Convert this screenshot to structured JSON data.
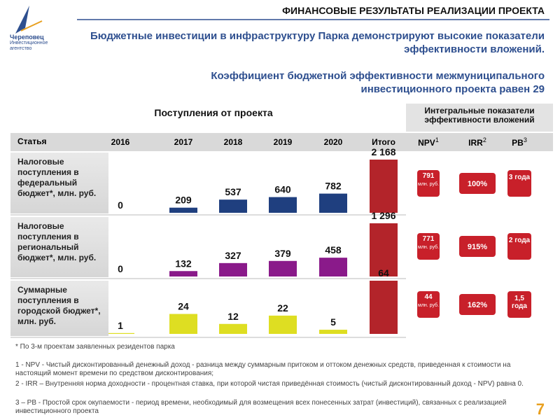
{
  "logo": {
    "name": "Череповец",
    "subtitle": "Инвестиционное агентство"
  },
  "header": {
    "title": "ФИНАНСОВЫЕ РЕЗУЛЬТАТЫ РЕАЛИЗАЦИИ ПРОЕКТА",
    "subtitle": "Бюджетные инвестиции в инфраструктуру Парка демонстрируют высокие показатели эффективности вложений.",
    "coefficient": "Коэффициент бюджетной эффективности межмуниципального инвестиционного проекта равен 29"
  },
  "table": {
    "section_title": "Поступления от проекта",
    "indicators_title": "Интегральные показатели эффективности вложений",
    "columns": [
      "Статья",
      "2016",
      "2017",
      "2018",
      "2019",
      "2020",
      "Итого"
    ],
    "indicator_columns": [
      {
        "name": "NPV",
        "note": "1"
      },
      {
        "name": "IRR",
        "note": "2"
      },
      {
        "name": "PB",
        "note": "3"
      }
    ],
    "total_color": "#b3242a",
    "indicator_color": "#c8202a",
    "rows": [
      {
        "label": "Налоговые поступления в федеральный бюджет*, млн. руб.",
        "color": "#1f3f7f",
        "values": [
          0,
          209,
          537,
          640,
          782,
          2168
        ],
        "value_labels": [
          "0",
          "209",
          "537",
          "640",
          "782",
          "2 168"
        ],
        "npv": "791",
        "npv_unit": "млн. руб.",
        "irr": "100%",
        "pb": "3 года"
      },
      {
        "label": "Налоговые поступления в региональный бюджет*, млн. руб.",
        "color": "#8a1a8a",
        "values": [
          0,
          132,
          327,
          379,
          458,
          1296
        ],
        "value_labels": [
          "0",
          "132",
          "327",
          "379",
          "458",
          "1 296"
        ],
        "npv": "771",
        "npv_unit": "млн. руб.",
        "irr": "915%",
        "pb": "2 года"
      },
      {
        "label": "Суммарные поступления в городской бюджет*, млн. руб.",
        "color": "#dede22",
        "values": [
          1,
          24,
          12,
          22,
          5,
          64
        ],
        "value_labels": [
          "1",
          "24",
          "12",
          "22",
          "5",
          "64"
        ],
        "npv": "44",
        "npv_unit": "млн. руб.",
        "irr": "162%",
        "pb": "1,5 года"
      }
    ]
  },
  "footnote": "* По 3-м проектам заявленных резидентов парка",
  "notes": [
    "1 - NPV - Чистый дисконтированный денежный доход - разница между суммарным притоком и оттоком денежных средств, приведенная к стоимости на настоящий момент времени по средством дисконтирования;",
    "2 - IRR – Внутренняя норма доходности - процентная ставка, при которой чистая приведённая стоимость (чистый дисконтированный доход - NPV) равна 0.",
    "3 – PB - Простой срок окупаемости - период времени, необходимый для возмещения всех понесенных затрат (инвестиций), связанных с реализацией инвестиционного проекта"
  ],
  "page_number": "7"
}
